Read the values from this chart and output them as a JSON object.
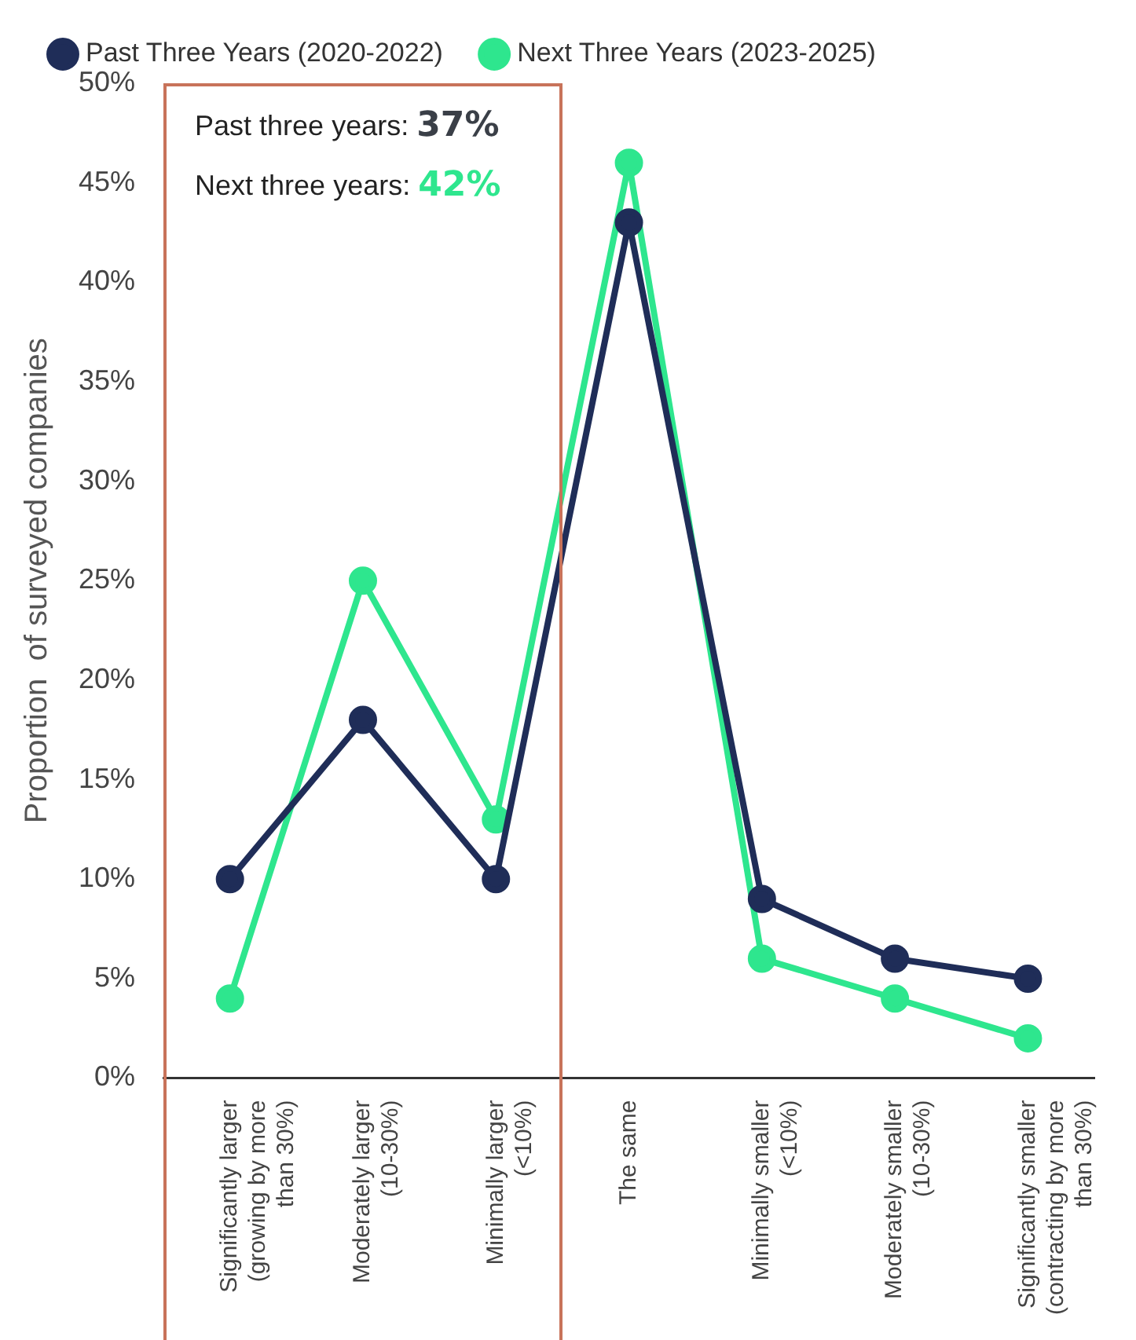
{
  "chart_data": {
    "type": "line",
    "ylabel": "Proportion  of surveyed companies",
    "categories": [
      "Significantly larger (growing by more than 30%)",
      "Moderately larger (10-30%)",
      "Minimally larger (<10%)",
      "The same",
      "Minimally smaller (<10%)",
      "Moderately smaller (10-30%)",
      "Significantly smaller (contracting by more than 30%)"
    ],
    "series": [
      {
        "name": "Past Three Years (2020-2022)",
        "color": "#1f2d58",
        "values": [
          10,
          18,
          10,
          43,
          9,
          6,
          5
        ]
      },
      {
        "name": "Next Three Years (2023-2025)",
        "color": "#2ee68e",
        "values": [
          4,
          25,
          13,
          46,
          6,
          4,
          2
        ]
      }
    ],
    "ylim": [
      0,
      50
    ],
    "yticks": [
      {
        "value": 0,
        "label": "0%"
      },
      {
        "value": 5,
        "label": "5%"
      },
      {
        "value": 10,
        "label": "10%"
      },
      {
        "value": 15,
        "label": "15%"
      },
      {
        "value": 20,
        "label": "20%"
      },
      {
        "value": 25,
        "label": "25%"
      },
      {
        "value": 30,
        "label": "30%"
      },
      {
        "value": 35,
        "label": "35%"
      },
      {
        "value": 40,
        "label": "40%"
      },
      {
        "value": 45,
        "label": "45%"
      },
      {
        "value": 50,
        "label": "50%"
      }
    ],
    "annotations": [
      "Past three years: 37%",
      "Next three years: 42%"
    ],
    "grid": false,
    "legend": "top",
    "marker": "circle",
    "line_style": "solid"
  }
}
